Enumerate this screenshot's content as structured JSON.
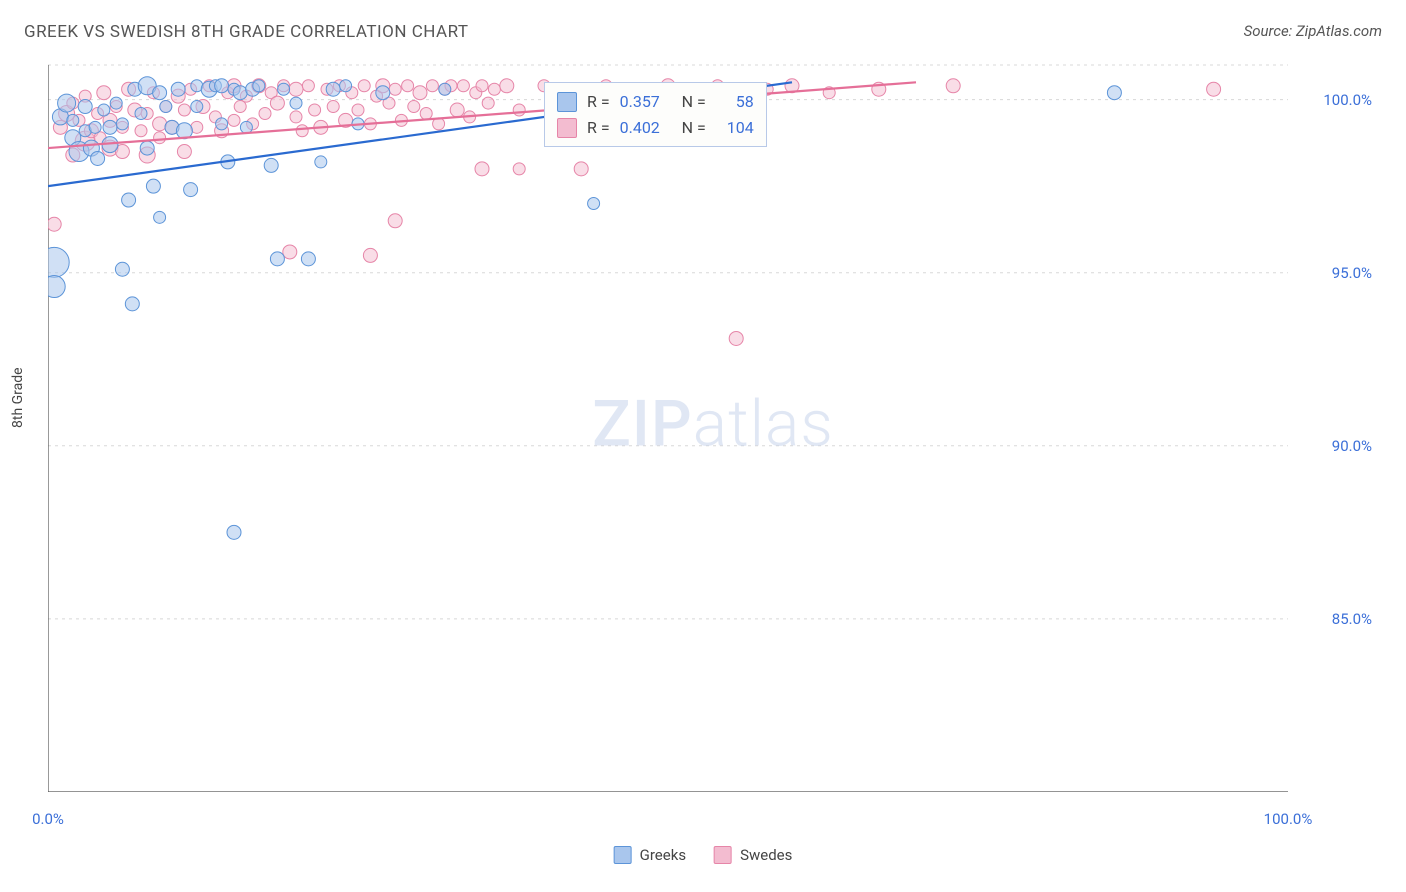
{
  "title": "GREEK VS SWEDISH 8TH GRADE CORRELATION CHART",
  "source": "Source: ZipAtlas.com",
  "y_axis_label": "8th Grade",
  "watermark_bold": "ZIP",
  "watermark_light": "atlas",
  "chart": {
    "type": "scatter",
    "xlim": [
      0,
      100
    ],
    "ylim": [
      80,
      101
    ],
    "x_ticks": [
      0,
      10,
      20,
      30,
      40,
      50,
      60,
      70,
      80,
      90,
      100
    ],
    "x_tick_labels_shown": {
      "0": "0.0%",
      "100": "100.0%"
    },
    "y_ticks": [
      85,
      90,
      95,
      100
    ],
    "y_tick_labels": {
      "85": "85.0%",
      "90": "90.0%",
      "95": "95.0%",
      "100": "100.0%"
    },
    "background_color": "#ffffff",
    "grid_color": "#d8d8d8",
    "axis_color": "#555555",
    "y_label_color": "#3b6fd8",
    "series": [
      {
        "name": "Greeks",
        "fill": "#a9c6ed",
        "stroke": "#5c94d8",
        "line_color": "#2a6ad0",
        "fill_opacity": 0.55,
        "R": "0.357",
        "N": "58",
        "trend": {
          "x1": 0,
          "y1": 97.5,
          "x2": 60,
          "y2": 100.5
        },
        "points": [
          {
            "x": 0.5,
            "y": 95.3,
            "r": 15
          },
          {
            "x": 0.5,
            "y": 94.6,
            "r": 11
          },
          {
            "x": 1,
            "y": 99.5,
            "r": 8
          },
          {
            "x": 1.5,
            "y": 99.9,
            "r": 9
          },
          {
            "x": 2,
            "y": 98.9,
            "r": 8
          },
          {
            "x": 2,
            "y": 99.4,
            "r": 6
          },
          {
            "x": 2.5,
            "y": 98.5,
            "r": 10
          },
          {
            "x": 3,
            "y": 99.8,
            "r": 7
          },
          {
            "x": 3,
            "y": 99.1,
            "r": 6
          },
          {
            "x": 3.5,
            "y": 98.6,
            "r": 8
          },
          {
            "x": 3.8,
            "y": 99.2,
            "r": 6
          },
          {
            "x": 4,
            "y": 98.3,
            "r": 7
          },
          {
            "x": 4.5,
            "y": 99.7,
            "r": 6
          },
          {
            "x": 5,
            "y": 99.2,
            "r": 7
          },
          {
            "x": 5,
            "y": 98.7,
            "r": 8
          },
          {
            "x": 5.5,
            "y": 99.9,
            "r": 6
          },
          {
            "x": 6,
            "y": 99.3,
            "r": 6
          },
          {
            "x": 6,
            "y": 95.1,
            "r": 7
          },
          {
            "x": 6.5,
            "y": 97.1,
            "r": 7
          },
          {
            "x": 6.8,
            "y": 94.1,
            "r": 7
          },
          {
            "x": 7,
            "y": 100.3,
            "r": 7
          },
          {
            "x": 7.5,
            "y": 99.6,
            "r": 6
          },
          {
            "x": 8,
            "y": 100.4,
            "r": 9
          },
          {
            "x": 8,
            "y": 98.6,
            "r": 7
          },
          {
            "x": 8.5,
            "y": 97.5,
            "r": 7
          },
          {
            "x": 9,
            "y": 100.2,
            "r": 7
          },
          {
            "x": 9,
            "y": 96.6,
            "r": 6
          },
          {
            "x": 9.5,
            "y": 99.8,
            "r": 6
          },
          {
            "x": 10,
            "y": 99.2,
            "r": 7
          },
          {
            "x": 10.5,
            "y": 100.3,
            "r": 7
          },
          {
            "x": 11,
            "y": 99.1,
            "r": 8
          },
          {
            "x": 11.5,
            "y": 97.4,
            "r": 7
          },
          {
            "x": 12,
            "y": 100.4,
            "r": 6
          },
          {
            "x": 12,
            "y": 99.8,
            "r": 6
          },
          {
            "x": 13,
            "y": 100.3,
            "r": 8
          },
          {
            "x": 13.5,
            "y": 100.4,
            "r": 6
          },
          {
            "x": 14,
            "y": 99.3,
            "r": 6
          },
          {
            "x": 14,
            "y": 100.4,
            "r": 7
          },
          {
            "x": 14.5,
            "y": 98.2,
            "r": 7
          },
          {
            "x": 15,
            "y": 100.3,
            "r": 6
          },
          {
            "x": 15,
            "y": 87.5,
            "r": 7
          },
          {
            "x": 15.5,
            "y": 100.2,
            "r": 7
          },
          {
            "x": 16,
            "y": 99.2,
            "r": 6
          },
          {
            "x": 16.5,
            "y": 100.3,
            "r": 7
          },
          {
            "x": 17,
            "y": 100.4,
            "r": 6
          },
          {
            "x": 18,
            "y": 98.1,
            "r": 7
          },
          {
            "x": 18.5,
            "y": 95.4,
            "r": 7
          },
          {
            "x": 19,
            "y": 100.3,
            "r": 6
          },
          {
            "x": 20,
            "y": 99.9,
            "r": 6
          },
          {
            "x": 21,
            "y": 95.4,
            "r": 7
          },
          {
            "x": 22,
            "y": 98.2,
            "r": 6
          },
          {
            "x": 23,
            "y": 100.3,
            "r": 7
          },
          {
            "x": 24,
            "y": 100.4,
            "r": 6
          },
          {
            "x": 25,
            "y": 99.3,
            "r": 6
          },
          {
            "x": 27,
            "y": 100.2,
            "r": 7
          },
          {
            "x": 32,
            "y": 100.3,
            "r": 6
          },
          {
            "x": 44,
            "y": 97.0,
            "r": 6
          },
          {
            "x": 86,
            "y": 100.2,
            "r": 7
          }
        ]
      },
      {
        "name": "Swedes",
        "fill": "#f3bcd0",
        "stroke": "#e685a8",
        "line_color": "#e56f98",
        "fill_opacity": 0.5,
        "R": "0.402",
        "N": "104",
        "trend": {
          "x1": 0,
          "y1": 98.6,
          "x2": 70,
          "y2": 100.5
        },
        "points": [
          {
            "x": 0.5,
            "y": 96.4,
            "r": 7
          },
          {
            "x": 1,
            "y": 99.2,
            "r": 7
          },
          {
            "x": 1.5,
            "y": 99.6,
            "r": 8
          },
          {
            "x": 2,
            "y": 98.4,
            "r": 7
          },
          {
            "x": 2,
            "y": 99.9,
            "r": 6
          },
          {
            "x": 2.5,
            "y": 99.4,
            "r": 6
          },
          {
            "x": 3,
            "y": 98.8,
            "r": 10
          },
          {
            "x": 3,
            "y": 100.1,
            "r": 6
          },
          {
            "x": 3.5,
            "y": 99.1,
            "r": 7
          },
          {
            "x": 4,
            "y": 99.6,
            "r": 6
          },
          {
            "x": 4.2,
            "y": 98.9,
            "r": 6
          },
          {
            "x": 4.5,
            "y": 100.2,
            "r": 7
          },
          {
            "x": 5,
            "y": 98.6,
            "r": 8
          },
          {
            "x": 5,
            "y": 99.4,
            "r": 7
          },
          {
            "x": 5.5,
            "y": 99.8,
            "r": 6
          },
          {
            "x": 6,
            "y": 98.5,
            "r": 7
          },
          {
            "x": 6,
            "y": 99.2,
            "r": 6
          },
          {
            "x": 6.5,
            "y": 100.3,
            "r": 7
          },
          {
            "x": 7,
            "y": 99.7,
            "r": 7
          },
          {
            "x": 7.5,
            "y": 99.1,
            "r": 6
          },
          {
            "x": 8,
            "y": 98.4,
            "r": 8
          },
          {
            "x": 8,
            "y": 99.6,
            "r": 6
          },
          {
            "x": 8.5,
            "y": 100.2,
            "r": 6
          },
          {
            "x": 9,
            "y": 99.3,
            "r": 7
          },
          {
            "x": 9,
            "y": 98.9,
            "r": 6
          },
          {
            "x": 9.5,
            "y": 99.8,
            "r": 6
          },
          {
            "x": 10,
            "y": 99.2,
            "r": 7
          },
          {
            "x": 10.5,
            "y": 100.1,
            "r": 7
          },
          {
            "x": 11,
            "y": 99.7,
            "r": 6
          },
          {
            "x": 11,
            "y": 98.5,
            "r": 7
          },
          {
            "x": 11.5,
            "y": 100.3,
            "r": 6
          },
          {
            "x": 12,
            "y": 99.2,
            "r": 6
          },
          {
            "x": 12.5,
            "y": 99.8,
            "r": 7
          },
          {
            "x": 13,
            "y": 100.4,
            "r": 6
          },
          {
            "x": 13.5,
            "y": 99.5,
            "r": 6
          },
          {
            "x": 14,
            "y": 99.1,
            "r": 7
          },
          {
            "x": 14.5,
            "y": 100.2,
            "r": 6
          },
          {
            "x": 15,
            "y": 99.4,
            "r": 6
          },
          {
            "x": 15,
            "y": 100.4,
            "r": 7
          },
          {
            "x": 15.5,
            "y": 99.8,
            "r": 6
          },
          {
            "x": 16,
            "y": 100.1,
            "r": 6
          },
          {
            "x": 16.5,
            "y": 99.3,
            "r": 6
          },
          {
            "x": 17,
            "y": 100.4,
            "r": 7
          },
          {
            "x": 17.5,
            "y": 99.6,
            "r": 6
          },
          {
            "x": 18,
            "y": 100.2,
            "r": 6
          },
          {
            "x": 18.5,
            "y": 99.9,
            "r": 7
          },
          {
            "x": 19,
            "y": 100.4,
            "r": 6
          },
          {
            "x": 19.5,
            "y": 95.6,
            "r": 7
          },
          {
            "x": 20,
            "y": 99.5,
            "r": 6
          },
          {
            "x": 20,
            "y": 100.3,
            "r": 7
          },
          {
            "x": 20.5,
            "y": 99.1,
            "r": 6
          },
          {
            "x": 21,
            "y": 100.4,
            "r": 6
          },
          {
            "x": 21.5,
            "y": 99.7,
            "r": 6
          },
          {
            "x": 22,
            "y": 99.2,
            "r": 7
          },
          {
            "x": 22.5,
            "y": 100.3,
            "r": 6
          },
          {
            "x": 23,
            "y": 99.8,
            "r": 6
          },
          {
            "x": 23.5,
            "y": 100.4,
            "r": 6
          },
          {
            "x": 24,
            "y": 99.4,
            "r": 7
          },
          {
            "x": 24.5,
            "y": 100.2,
            "r": 6
          },
          {
            "x": 25,
            "y": 99.7,
            "r": 6
          },
          {
            "x": 25.5,
            "y": 100.4,
            "r": 6
          },
          {
            "x": 26,
            "y": 95.5,
            "r": 7
          },
          {
            "x": 26,
            "y": 99.3,
            "r": 6
          },
          {
            "x": 26.5,
            "y": 100.1,
            "r": 6
          },
          {
            "x": 27,
            "y": 100.4,
            "r": 7
          },
          {
            "x": 27.5,
            "y": 99.9,
            "r": 6
          },
          {
            "x": 28,
            "y": 96.5,
            "r": 7
          },
          {
            "x": 28,
            "y": 100.3,
            "r": 6
          },
          {
            "x": 28.5,
            "y": 99.4,
            "r": 6
          },
          {
            "x": 29,
            "y": 100.4,
            "r": 6
          },
          {
            "x": 29.5,
            "y": 99.8,
            "r": 6
          },
          {
            "x": 30,
            "y": 100.2,
            "r": 7
          },
          {
            "x": 30.5,
            "y": 99.6,
            "r": 6
          },
          {
            "x": 31,
            "y": 100.4,
            "r": 6
          },
          {
            "x": 31.5,
            "y": 99.3,
            "r": 6
          },
          {
            "x": 32,
            "y": 100.3,
            "r": 6
          },
          {
            "x": 32.5,
            "y": 100.4,
            "r": 6
          },
          {
            "x": 33,
            "y": 99.7,
            "r": 7
          },
          {
            "x": 33.5,
            "y": 100.4,
            "r": 6
          },
          {
            "x": 34,
            "y": 99.5,
            "r": 6
          },
          {
            "x": 34.5,
            "y": 100.2,
            "r": 6
          },
          {
            "x": 35,
            "y": 98.0,
            "r": 7
          },
          {
            "x": 35,
            "y": 100.4,
            "r": 6
          },
          {
            "x": 35.5,
            "y": 99.9,
            "r": 6
          },
          {
            "x": 36,
            "y": 100.3,
            "r": 6
          },
          {
            "x": 37,
            "y": 100.4,
            "r": 7
          },
          {
            "x": 38,
            "y": 99.7,
            "r": 6
          },
          {
            "x": 38,
            "y": 98.0,
            "r": 6
          },
          {
            "x": 40,
            "y": 100.4,
            "r": 6
          },
          {
            "x": 42,
            "y": 100.3,
            "r": 6
          },
          {
            "x": 43,
            "y": 98.0,
            "r": 7
          },
          {
            "x": 45,
            "y": 100.4,
            "r": 6
          },
          {
            "x": 46,
            "y": 100.2,
            "r": 6
          },
          {
            "x": 50,
            "y": 100.4,
            "r": 7
          },
          {
            "x": 52,
            "y": 100.3,
            "r": 6
          },
          {
            "x": 54,
            "y": 100.4,
            "r": 6
          },
          {
            "x": 55.5,
            "y": 93.1,
            "r": 7
          },
          {
            "x": 56,
            "y": 100.2,
            "r": 6
          },
          {
            "x": 58,
            "y": 100.3,
            "r": 6
          },
          {
            "x": 60,
            "y": 100.4,
            "r": 7
          },
          {
            "x": 63,
            "y": 100.2,
            "r": 6
          },
          {
            "x": 67,
            "y": 100.3,
            "r": 7
          },
          {
            "x": 73,
            "y": 100.4,
            "r": 7
          },
          {
            "x": 94,
            "y": 100.3,
            "r": 7
          }
        ]
      }
    ]
  },
  "legend": {
    "greeks": "Greeks",
    "swedes": "Swedes"
  },
  "stats_labels": {
    "R": "R =",
    "N": "N ="
  }
}
